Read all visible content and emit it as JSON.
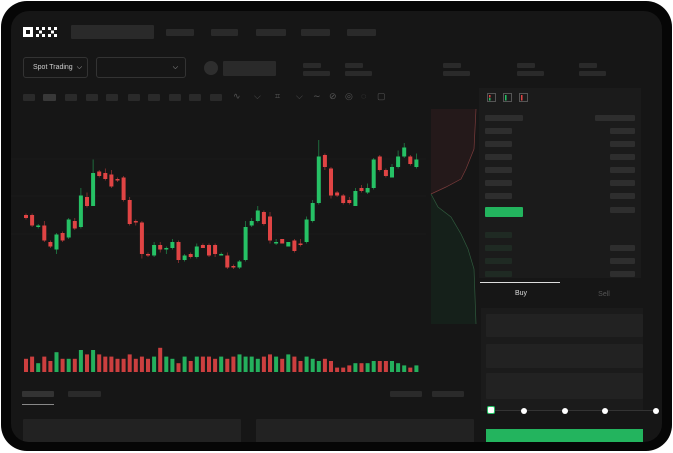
{
  "header": {
    "logo": "OKX"
  },
  "toolbar": {
    "market_select": "Spot Trading",
    "pair_select": ""
  },
  "trade": {
    "tabs": [
      {
        "label": "Buy",
        "active": true
      },
      {
        "label": "Sell",
        "active": false
      }
    ],
    "slider_percent": 0
  },
  "colors": {
    "up": "#26c165",
    "down": "#e04444",
    "background": "#161616",
    "accent": "#23b45e"
  },
  "chart_data": {
    "type": "candlestick",
    "columns": [
      "open",
      "close",
      "high",
      "low"
    ],
    "candles": [
      [
        44,
        42,
        45,
        41
      ],
      [
        44,
        37,
        45,
        36
      ],
      [
        36,
        37,
        38,
        35
      ],
      [
        37,
        27,
        40,
        26
      ],
      [
        26,
        23,
        27,
        22
      ],
      [
        21,
        31,
        32,
        18
      ],
      [
        32,
        27,
        33,
        26
      ],
      [
        29,
        41,
        42,
        28
      ],
      [
        40,
        35,
        42,
        34
      ],
      [
        36,
        57,
        62,
        35
      ],
      [
        56,
        50,
        59,
        49
      ],
      [
        50,
        72,
        81,
        50
      ],
      [
        73,
        70,
        74,
        69
      ],
      [
        72,
        68,
        75,
        67
      ],
      [
        71,
        63,
        74,
        62
      ],
      [
        68,
        67,
        69,
        66
      ],
      [
        69,
        54,
        70,
        53
      ],
      [
        54,
        38,
        56,
        37
      ],
      [
        40,
        39,
        41,
        37
      ],
      [
        39,
        18,
        40,
        15
      ],
      [
        18,
        17,
        19,
        16
      ],
      [
        17,
        24,
        26,
        16
      ],
      [
        24,
        21,
        26,
        19
      ],
      [
        21,
        22,
        23,
        18
      ],
      [
        22,
        26,
        28,
        21
      ],
      [
        26,
        14,
        27,
        12
      ],
      [
        14,
        17,
        18,
        13
      ],
      [
        18,
        16,
        19,
        15
      ],
      [
        16,
        23,
        25,
        15
      ],
      [
        24,
        22,
        25,
        22
      ],
      [
        24,
        17,
        25,
        16
      ],
      [
        24,
        18,
        25,
        16
      ],
      [
        18,
        18,
        19,
        17
      ],
      [
        17,
        9,
        19,
        8
      ],
      [
        10,
        9,
        11,
        8
      ],
      [
        9,
        13,
        14,
        8
      ],
      [
        14,
        36,
        40,
        13
      ],
      [
        37,
        40,
        42,
        36
      ],
      [
        40,
        47,
        50,
        39
      ],
      [
        46,
        38,
        47,
        37
      ],
      [
        43,
        27,
        46,
        25
      ],
      [
        26,
        26,
        28,
        24
      ],
      [
        28,
        25,
        28,
        25
      ],
      [
        23,
        26,
        26,
        23
      ],
      [
        27,
        20,
        28,
        19
      ],
      [
        25,
        24,
        28,
        23
      ],
      [
        26,
        41,
        43,
        25
      ],
      [
        40,
        52,
        54,
        39
      ],
      [
        52,
        83,
        94,
        51
      ],
      [
        84,
        76,
        85,
        74
      ],
      [
        75,
        57,
        76,
        55
      ],
      [
        59,
        57,
        60,
        56
      ],
      [
        57,
        52,
        58,
        51
      ],
      [
        54,
        52,
        56,
        51
      ],
      [
        50,
        60,
        62,
        50
      ],
      [
        62,
        60,
        64,
        59
      ],
      [
        59,
        62,
        65,
        58
      ],
      [
        62,
        81,
        82,
        61
      ],
      [
        83,
        74,
        84,
        73
      ],
      [
        74,
        70,
        75,
        69
      ],
      [
        69,
        76,
        78,
        69
      ],
      [
        76,
        83,
        87,
        75
      ],
      [
        83,
        89,
        92,
        82
      ],
      [
        83,
        78,
        84,
        77
      ],
      [
        76,
        81,
        85,
        75
      ]
    ],
    "volume": [
      6,
      7,
      4,
      7,
      5,
      9,
      6,
      6,
      6,
      10,
      8,
      10,
      8,
      7,
      7,
      6,
      6,
      8,
      6,
      7,
      6,
      7,
      11,
      7,
      6,
      4,
      7,
      5,
      7,
      7,
      7,
      6,
      7,
      6,
      7,
      8,
      7,
      7,
      6,
      7,
      8,
      7,
      6,
      8,
      7,
      5,
      7,
      6,
      5,
      6,
      5,
      2,
      2,
      3,
      4,
      4,
      4,
      5,
      5,
      5,
      5,
      4,
      3,
      2,
      3
    ],
    "grid": true
  }
}
